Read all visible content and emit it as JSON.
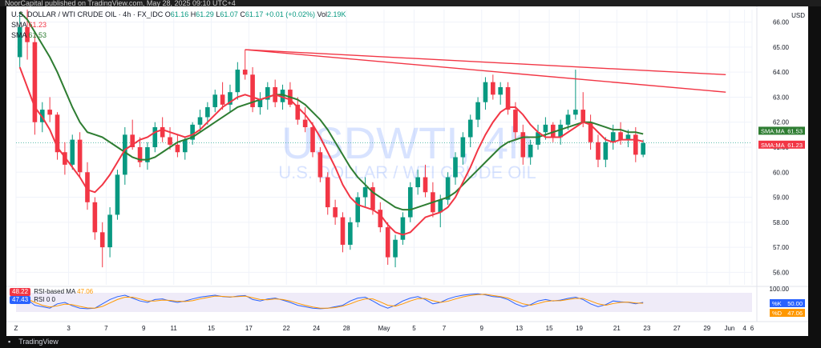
{
  "topbar": {
    "text": "NoorCapital published on TradingView.com, May 28, 2025 09:10 UTC+4"
  },
  "legend": {
    "symbol": "U.S. DOLLAR / WTI CRUDE OIL · 4h · FX_IDC",
    "o_label": "O",
    "o": "61.16",
    "h_label": "H",
    "h": "61.29",
    "l_label": "L",
    "l": "61.07",
    "c_label": "C",
    "c": "61.17",
    "change": "+0.01 (+0.02%)",
    "vol_label": "Vol",
    "vol": "2.19K",
    "sma1_label": "SMA",
    "sma1": "61.23",
    "sma2_label": "SMA",
    "sma2": "61.53"
  },
  "watermark": {
    "title": "USDWTI, 4h",
    "subtitle": "U.S. DOLLAR / WTI CRUDE OIL"
  },
  "footer": {
    "brand": "TradingView"
  },
  "rsi": {
    "legend1_value": "48.22",
    "legend1_label": "RSI-based MA",
    "legend1_extra": "47.06",
    "legend2_value": "47.43",
    "legend2_label": "RSI",
    "legend2_extra": "0 0",
    "axis_100": "100.00",
    "pill_k": "%K",
    "pill_k_val": "50.00",
    "pill_d": "%D",
    "pill_d_val": "47.06"
  },
  "chart_data": {
    "type": "candlestick",
    "currency": "USD",
    "ylim": [
      55.5,
      66.5
    ],
    "y_ticks": [
      "56.00",
      "57.00",
      "58.00",
      "59.00",
      "60.00",
      "61.00",
      "62.00",
      "63.00",
      "64.00",
      "65.00",
      "66.00"
    ],
    "x_ticks": [
      "Z",
      "3",
      "7",
      "9",
      "11",
      "15",
      "17",
      "22",
      "24",
      "28",
      "May",
      "5",
      "7",
      "9",
      "13",
      "15",
      "19",
      "21",
      "23",
      "27",
      "29",
      "Jun",
      "4",
      "6"
    ],
    "candles": [
      [
        64.6,
        66.4,
        64.2,
        65.8
      ],
      [
        65.8,
        66.5,
        64.5,
        65.2
      ],
      [
        65.2,
        65.5,
        61.5,
        62.0
      ],
      [
        62.0,
        62.8,
        61.6,
        62.5
      ],
      [
        62.5,
        63.0,
        62.0,
        62.3
      ],
      [
        62.3,
        62.4,
        60.5,
        60.8
      ],
      [
        60.8,
        61.2,
        59.9,
        60.3
      ],
      [
        60.3,
        61.5,
        60.1,
        61.3
      ],
      [
        61.3,
        61.6,
        59.8,
        60.0
      ],
      [
        60.0,
        60.4,
        58.5,
        58.8
      ],
      [
        58.8,
        59.0,
        57.3,
        57.6
      ],
      [
        57.6,
        58.0,
        56.2,
        57.0
      ],
      [
        57.0,
        58.6,
        56.6,
        58.3
      ],
      [
        58.3,
        60.1,
        58.1,
        59.9
      ],
      [
        59.9,
        61.8,
        59.5,
        61.5
      ],
      [
        61.5,
        62.1,
        60.9,
        61.0
      ],
      [
        61.0,
        61.4,
        60.2,
        60.4
      ],
      [
        60.4,
        61.2,
        60.1,
        61.0
      ],
      [
        61.0,
        62.0,
        60.8,
        61.8
      ],
      [
        61.8,
        62.2,
        61.2,
        61.4
      ],
      [
        61.4,
        61.8,
        60.9,
        61.1
      ],
      [
        61.1,
        61.5,
        60.6,
        60.8
      ],
      [
        60.8,
        61.4,
        60.5,
        61.3
      ],
      [
        61.3,
        62.0,
        61.1,
        61.9
      ],
      [
        61.9,
        62.5,
        61.6,
        62.2
      ],
      [
        62.2,
        62.8,
        61.9,
        62.6
      ],
      [
        62.6,
        63.3,
        62.4,
        63.1
      ],
      [
        63.1,
        63.6,
        62.5,
        62.7
      ],
      [
        62.7,
        63.5,
        62.4,
        63.2
      ],
      [
        63.2,
        64.4,
        62.9,
        64.1
      ],
      [
        64.1,
        64.9,
        63.7,
        63.9
      ],
      [
        63.9,
        64.2,
        62.4,
        62.6
      ],
      [
        62.6,
        63.2,
        62.3,
        62.9
      ],
      [
        62.9,
        63.6,
        62.5,
        63.4
      ],
      [
        63.4,
        63.7,
        62.6,
        62.8
      ],
      [
        62.8,
        63.5,
        62.5,
        63.3
      ],
      [
        63.3,
        63.6,
        62.6,
        62.7
      ],
      [
        62.7,
        63.0,
        61.9,
        62.1
      ],
      [
        62.1,
        62.6,
        61.6,
        61.8
      ],
      [
        61.8,
        62.0,
        60.6,
        60.8
      ],
      [
        60.8,
        61.0,
        59.6,
        59.8
      ],
      [
        59.8,
        60.0,
        58.3,
        58.6
      ],
      [
        58.6,
        58.9,
        57.9,
        58.2
      ],
      [
        58.2,
        58.4,
        56.8,
        57.1
      ],
      [
        57.1,
        58.2,
        56.9,
        58.0
      ],
      [
        58.0,
        59.2,
        57.8,
        59.0
      ],
      [
        59.0,
        59.8,
        58.6,
        59.4
      ],
      [
        59.4,
        59.6,
        58.3,
        58.5
      ],
      [
        58.5,
        58.8,
        57.6,
        57.8
      ],
      [
        57.8,
        58.0,
        56.3,
        56.6
      ],
      [
        56.6,
        57.5,
        56.2,
        57.3
      ],
      [
        57.3,
        58.4,
        57.1,
        58.2
      ],
      [
        58.2,
        59.6,
        58.0,
        59.4
      ],
      [
        59.4,
        60.1,
        59.1,
        59.8
      ],
      [
        59.8,
        60.3,
        59.0,
        59.2
      ],
      [
        59.2,
        59.6,
        58.2,
        58.4
      ],
      [
        58.4,
        59.1,
        57.8,
        58.9
      ],
      [
        58.9,
        60.0,
        58.7,
        59.8
      ],
      [
        59.8,
        60.8,
        59.5,
        60.6
      ],
      [
        60.6,
        61.6,
        60.3,
        61.4
      ],
      [
        61.4,
        62.3,
        61.0,
        62.1
      ],
      [
        62.1,
        63.0,
        61.8,
        62.8
      ],
      [
        62.8,
        63.8,
        62.5,
        63.6
      ],
      [
        63.6,
        63.9,
        62.9,
        63.1
      ],
      [
        63.1,
        63.6,
        62.7,
        63.4
      ],
      [
        63.4,
        63.6,
        62.3,
        62.5
      ],
      [
        62.5,
        62.8,
        61.3,
        61.6
      ],
      [
        61.6,
        61.9,
        60.3,
        60.6
      ],
      [
        60.6,
        61.3,
        60.3,
        61.1
      ],
      [
        61.1,
        61.9,
        60.9,
        61.6
      ],
      [
        61.6,
        62.2,
        61.3,
        61.9
      ],
      [
        61.9,
        62.0,
        61.2,
        61.4
      ],
      [
        61.4,
        62.1,
        61.1,
        61.9
      ],
      [
        61.9,
        62.5,
        61.7,
        62.3
      ],
      [
        62.3,
        64.1,
        62.1,
        62.5
      ],
      [
        62.5,
        63.2,
        61.8,
        62.0
      ],
      [
        62.0,
        62.3,
        60.9,
        61.2
      ],
      [
        61.2,
        61.5,
        60.2,
        60.5
      ],
      [
        60.5,
        61.4,
        60.2,
        61.2
      ],
      [
        61.2,
        61.9,
        60.9,
        61.6
      ],
      [
        61.6,
        62.0,
        61.1,
        61.3
      ],
      [
        61.3,
        61.7,
        61.0,
        61.5
      ],
      [
        61.5,
        61.8,
        60.4,
        60.7
      ],
      [
        60.7,
        61.3,
        60.6,
        61.17
      ]
    ],
    "sma_red": [
      64.2,
      63.4,
      62.6,
      62.2,
      61.7,
      61.0,
      60.6,
      60.2,
      59.8,
      59.3,
      59.2,
      59.5,
      59.9,
      60.4,
      60.9,
      61.1,
      61.3,
      61.4,
      61.6,
      61.7,
      61.6,
      61.5,
      61.4,
      61.5,
      61.7,
      62.0,
      62.3,
      62.6,
      62.8,
      63.0,
      63.1,
      63.0,
      62.9,
      63.0,
      63.1,
      63.0,
      62.9,
      62.6,
      62.3,
      61.9,
      61.4,
      60.8,
      60.2,
      59.5,
      59.0,
      58.7,
      58.6,
      58.5,
      58.3,
      57.9,
      57.6,
      57.5,
      57.6,
      57.9,
      58.2,
      58.3,
      58.4,
      58.6,
      59.0,
      59.6,
      60.2,
      60.9,
      61.5,
      62.0,
      62.4,
      62.6,
      62.6,
      62.3,
      61.9,
      61.6,
      61.4,
      61.4,
      61.4,
      61.6,
      61.8,
      62.0,
      61.9,
      61.6,
      61.3,
      61.2,
      61.3,
      61.3,
      61.3,
      61.23
    ],
    "sma_green": [
      66.4,
      66.1,
      65.6,
      65.1,
      64.6,
      64.0,
      63.3,
      62.6,
      62.0,
      61.6,
      61.5,
      61.4,
      61.2,
      61.0,
      60.8,
      60.6,
      60.5,
      60.5,
      60.6,
      60.8,
      61.0,
      61.2,
      61.3,
      61.4,
      61.6,
      61.8,
      62.0,
      62.2,
      62.4,
      62.6,
      62.7,
      62.8,
      62.9,
      63.0,
      63.1,
      63.1,
      63.0,
      62.9,
      62.7,
      62.4,
      62.1,
      61.7,
      61.2,
      60.7,
      60.2,
      59.8,
      59.5,
      59.2,
      59.0,
      58.8,
      58.6,
      58.5,
      58.5,
      58.6,
      58.7,
      58.8,
      58.9,
      59.0,
      59.2,
      59.5,
      59.8,
      60.1,
      60.4,
      60.7,
      61.0,
      61.2,
      61.3,
      61.4,
      61.4,
      61.4,
      61.5,
      61.6,
      61.7,
      61.8,
      61.9,
      62.0,
      62.0,
      61.9,
      61.8,
      61.7,
      61.7,
      61.6,
      61.6,
      61.53
    ],
    "trendlines": [
      {
        "from_index": 30,
        "from_value": 64.9,
        "to_index": 94,
        "to_value": 63.9
      },
      {
        "from_index": 30,
        "from_value": 64.9,
        "to_index": 94,
        "to_value": 63.2
      }
    ],
    "price_labels": [
      {
        "label": "SMA:MA",
        "value": "61.53",
        "color": "#2e7d32"
      },
      {
        "label": "SMA:MA",
        "value": "61.23",
        "color": "#f23645"
      }
    ],
    "rsi_k": [
      70,
      60,
      40,
      35,
      30,
      45,
      50,
      38,
      30,
      28,
      30,
      45,
      60,
      70,
      75,
      65,
      55,
      50,
      60,
      62,
      55,
      50,
      55,
      62,
      68,
      72,
      75,
      70,
      68,
      72,
      74,
      60,
      55,
      62,
      65,
      58,
      50,
      40,
      35,
      30,
      28,
      30,
      35,
      40,
      55,
      65,
      68,
      55,
      40,
      30,
      40,
      55,
      65,
      70,
      60,
      45,
      50,
      62,
      70,
      75,
      78,
      80,
      76,
      70,
      68,
      60,
      45,
      35,
      42,
      55,
      60,
      55,
      58,
      64,
      68,
      60,
      45,
      35,
      42,
      55,
      52,
      50,
      45,
      50
    ],
    "rsi_d": [
      65,
      62,
      50,
      40,
      34,
      38,
      44,
      42,
      36,
      31,
      30,
      36,
      48,
      60,
      68,
      68,
      62,
      55,
      55,
      58,
      57,
      54,
      53,
      56,
      62,
      67,
      72,
      71,
      69,
      70,
      72,
      66,
      60,
      59,
      62,
      60,
      55,
      47,
      40,
      34,
      30,
      30,
      32,
      37,
      45,
      55,
      62,
      62,
      52,
      40,
      37,
      45,
      55,
      63,
      64,
      56,
      50,
      54,
      62,
      69,
      74,
      77,
      78,
      74,
      70,
      65,
      55,
      45,
      40,
      46,
      53,
      56,
      56,
      60,
      64,
      64,
      55,
      45,
      40,
      46,
      50,
      51,
      48,
      47.06
    ]
  }
}
